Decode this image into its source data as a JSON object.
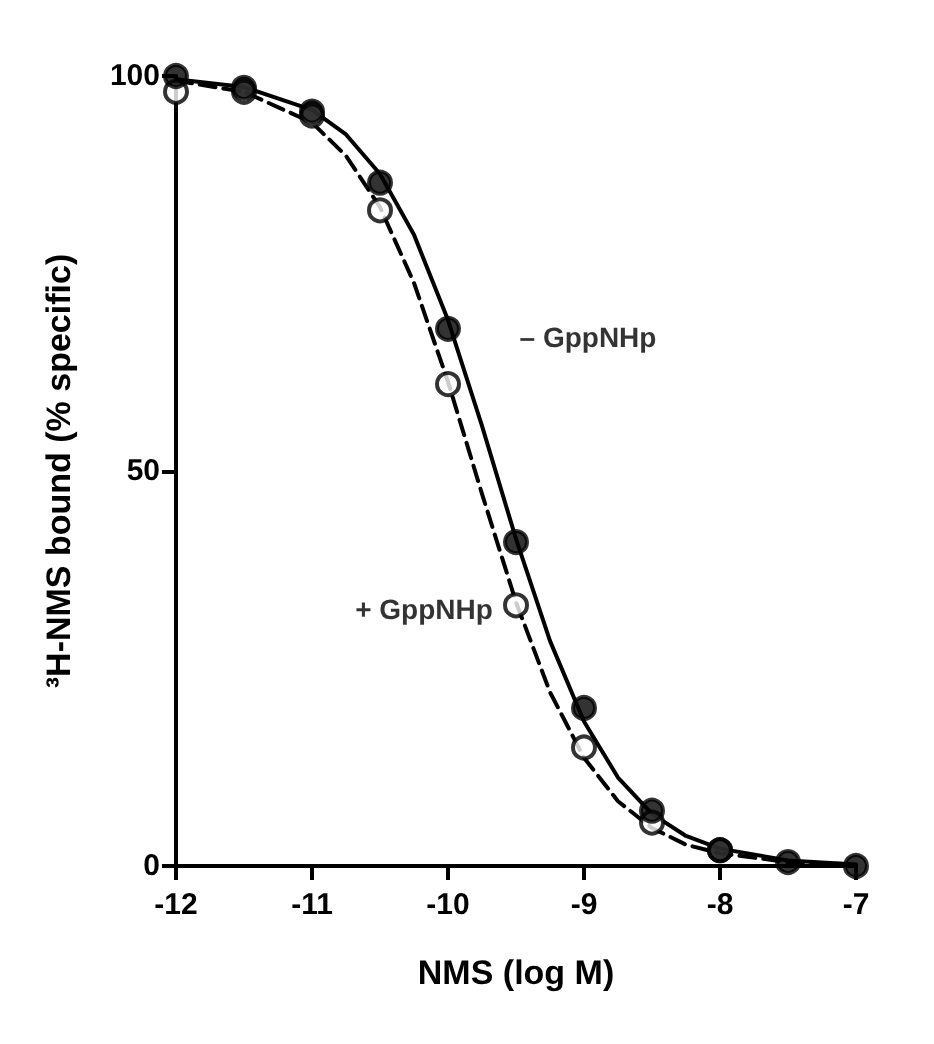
{
  "chart_data": {
    "type": "scatter",
    "xlabel": "NMS (log M)",
    "ylabel": "³H-NMS bound (% specific)",
    "xlim": [
      -12,
      -7
    ],
    "xticks": [
      -12,
      -11,
      -10,
      -9,
      -8,
      -7
    ],
    "ylim": [
      0,
      100
    ],
    "yticks": [
      0,
      50,
      100
    ],
    "grid": false,
    "legend": false,
    "series": [
      {
        "type": "line",
        "marker": "none",
        "line_style": "solid",
        "color": "#000000",
        "x": [
          -12,
          -11.5,
          -11,
          -10.75,
          -10.5,
          -10.25,
          -10,
          -9.75,
          -9.5,
          -9.25,
          -9,
          -8.75,
          -8.5,
          -8.25,
          -8,
          -7.5,
          -7
        ],
        "values": [
          99.6,
          98.6,
          95.7,
          92.6,
          87.6,
          79.9,
          69.1,
          55.7,
          41.4,
          28.5,
          18.3,
          11.2,
          6.6,
          3.8,
          2.2,
          0.7,
          0.2
        ]
      },
      {
        "type": "line",
        "marker": "none",
        "line_style": "dashed",
        "color": "#000000",
        "x": [
          -12,
          -11.5,
          -11,
          -10.75,
          -10.5,
          -10.25,
          -10,
          -9.75,
          -9.5,
          -9.25,
          -9,
          -8.75,
          -8.5,
          -8.25,
          -8,
          -7.5,
          -7
        ],
        "values": [
          99.4,
          98,
          94.1,
          89.9,
          83.4,
          73.8,
          61.3,
          47.1,
          33.4,
          22,
          13.7,
          8.2,
          4.8,
          2.7,
          1.6,
          0.5,
          0.2
        ]
      },
      {
        "name": "+ GppNHp",
        "marker": "circle",
        "color": "#ffffff",
        "x": [
          -12,
          -11.5,
          -11,
          -10.5,
          -10,
          -9.5,
          -9,
          -8.5,
          -8
        ],
        "values": [
          98,
          98,
          95,
          83,
          61,
          33,
          15,
          5.5,
          2
        ]
      },
      {
        "name": "– GppNHp",
        "marker": "circle",
        "color": "#000000",
        "x": [
          -12,
          -11.5,
          -11,
          -10.5,
          -10,
          -9.5,
          -9,
          -8.5,
          -8,
          -7.5,
          -7
        ],
        "values": [
          100,
          98.5,
          95.5,
          86.5,
          68,
          41,
          20,
          7,
          2,
          0.5,
          0
        ]
      }
    ]
  }
}
